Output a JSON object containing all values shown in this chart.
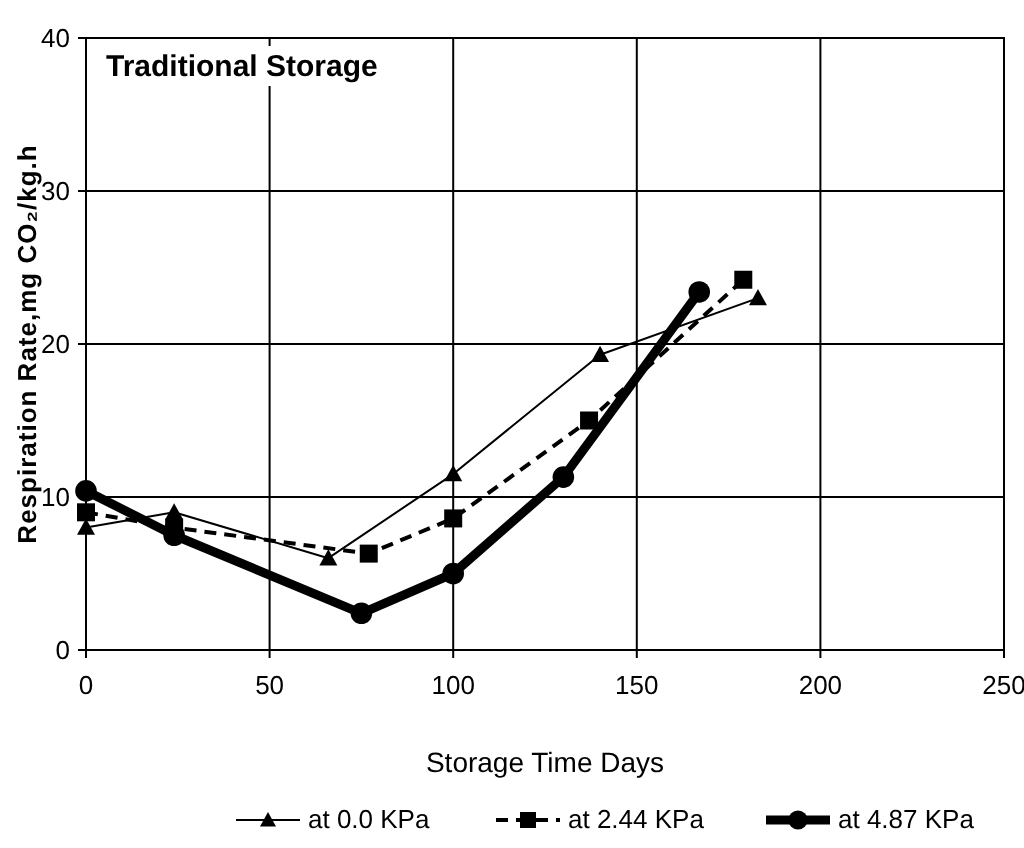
{
  "chart_data": {
    "type": "line",
    "title": "Traditional Storage",
    "xlabel": "Storage Time Days",
    "ylabel": "Respiration Rate,mg CO₂/kg.h",
    "xlim": [
      0,
      250
    ],
    "xticks": [
      0,
      50,
      100,
      150,
      200,
      250
    ],
    "ylim": [
      0,
      40
    ],
    "yticks": [
      0,
      10,
      20,
      30,
      40
    ],
    "grid": true,
    "legend": "bottom",
    "series": [
      {
        "name": "at 0.0 KPa",
        "color": "#000000",
        "marker": "triangle",
        "line_style": "solid",
        "x": [
          0,
          24,
          66,
          100,
          140,
          183
        ],
        "values": [
          8,
          9,
          6,
          11.5,
          19.3,
          23
        ]
      },
      {
        "name": "at 2.44 KPa",
        "color": "#000000",
        "marker": "square",
        "line_style": "dashed",
        "x": [
          0,
          24,
          77,
          100,
          137,
          179
        ],
        "values": [
          9,
          8,
          6.3,
          8.6,
          15,
          24.2
        ]
      },
      {
        "name": "at 4.87 KPa",
        "color": "#000000",
        "marker": "circle",
        "line_style": "solid",
        "x": [
          0,
          24,
          75,
          100,
          130,
          167
        ],
        "values": [
          10.4,
          7.5,
          2.4,
          5,
          11.3,
          23.4
        ]
      }
    ]
  }
}
